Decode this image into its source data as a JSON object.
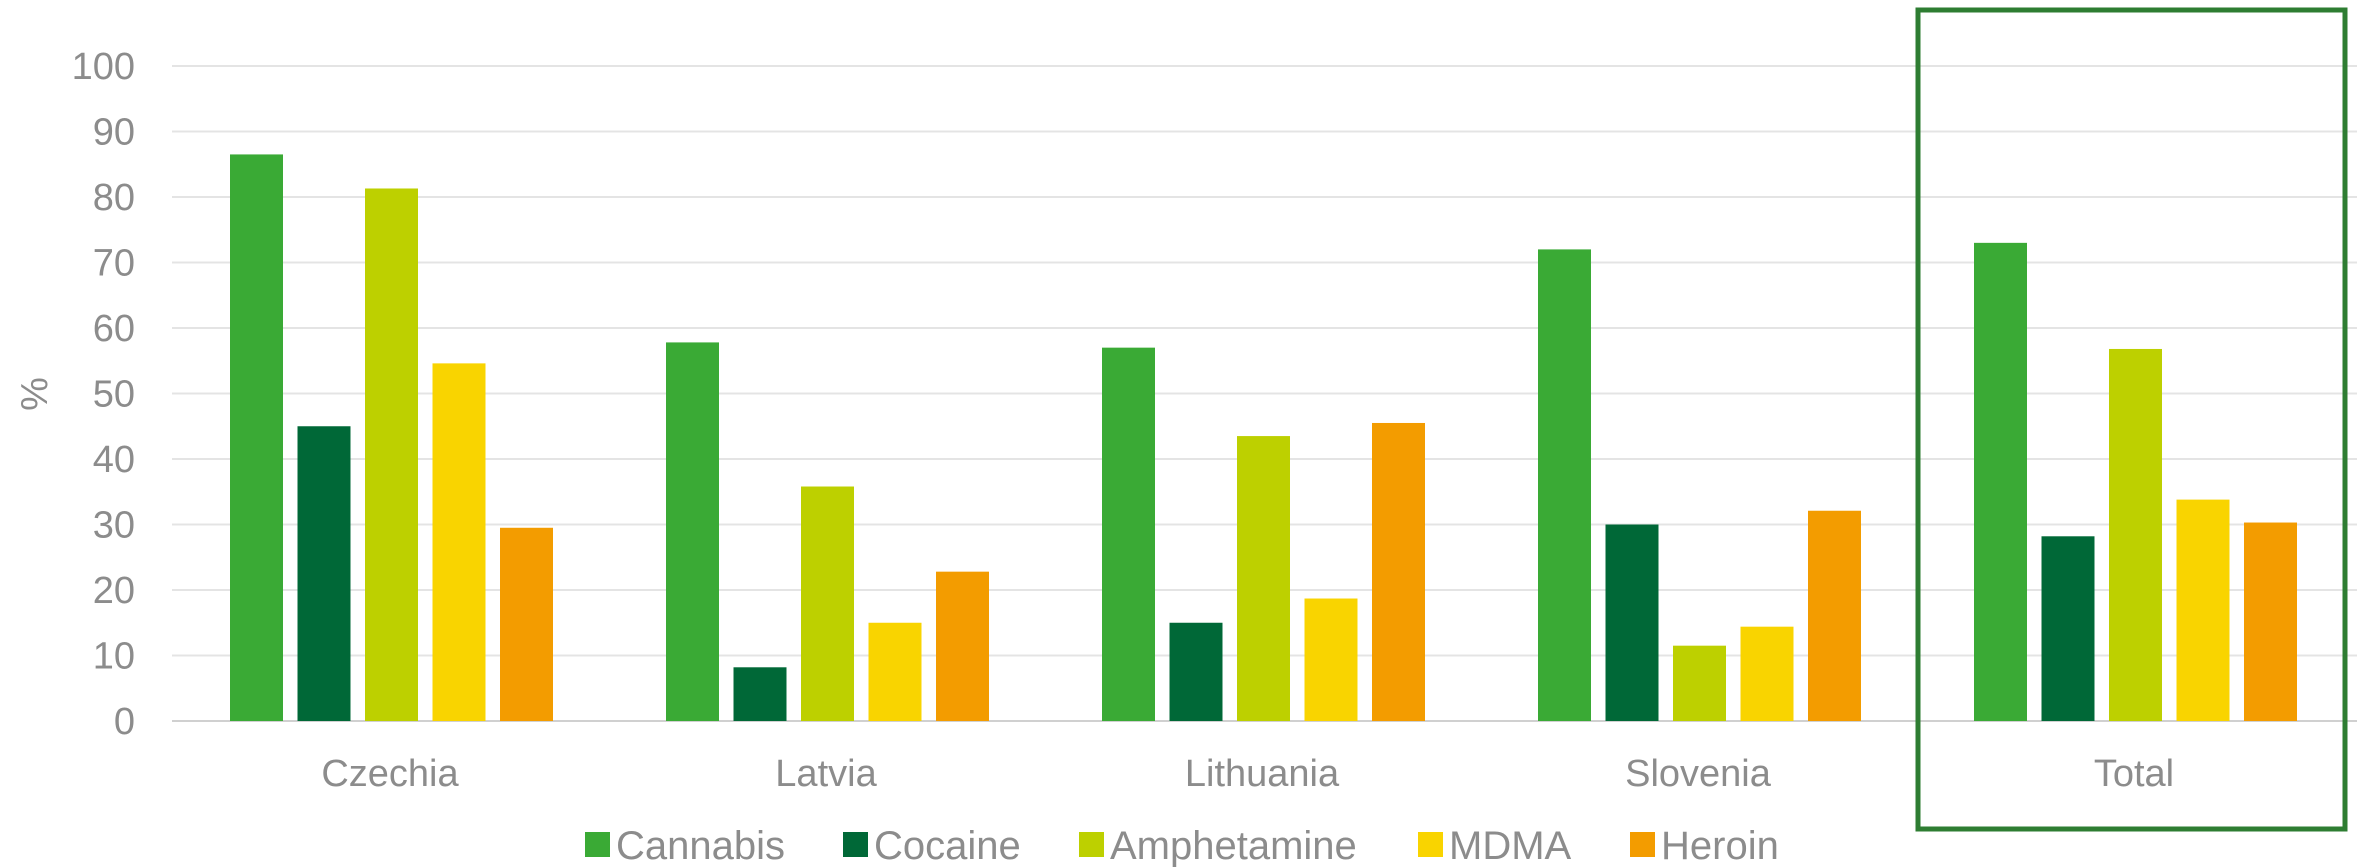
{
  "chart_data": {
    "type": "bar",
    "ylabel": "%",
    "ylim": [
      0,
      100
    ],
    "yticks": [
      0,
      10,
      20,
      30,
      40,
      50,
      60,
      70,
      80,
      90,
      100
    ],
    "grid": true,
    "legend_position": "bottom",
    "highlight_category": "Total",
    "highlight_color": "#2e7d32",
    "categories": [
      "Czechia",
      "Latvia",
      "Lithuania",
      "Slovenia",
      "Total"
    ],
    "series": [
      {
        "name": "Cannabis",
        "color": "#3aaa35",
        "values": [
          86.5,
          57.8,
          57.0,
          72.0,
          73.0
        ]
      },
      {
        "name": "Cocaine",
        "color": "#006837",
        "values": [
          45.0,
          8.2,
          15.0,
          30.0,
          28.2
        ]
      },
      {
        "name": "Amphetamine",
        "color": "#bdd000",
        "values": [
          81.3,
          35.8,
          43.5,
          11.5,
          56.8
        ]
      },
      {
        "name": "MDMA",
        "color": "#f9d400",
        "values": [
          54.6,
          15.0,
          18.7,
          14.4,
          33.8
        ]
      },
      {
        "name": "Heroin",
        "color": "#f39c00",
        "values": [
          29.5,
          22.8,
          45.5,
          32.1,
          30.3
        ]
      }
    ]
  }
}
